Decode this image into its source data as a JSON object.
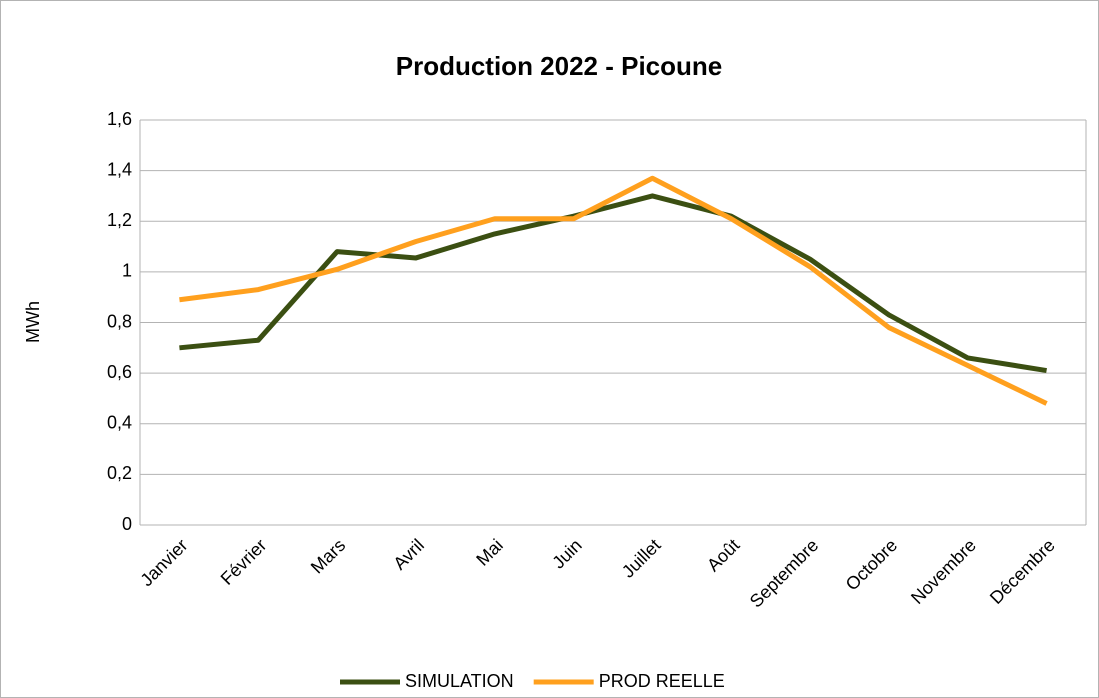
{
  "chart_data": {
    "type": "line",
    "title": "Production 2022 - Picoune",
    "y_label": "MWh",
    "categories": [
      "Janvier",
      "Février",
      "Mars",
      "Avril",
      "Mai",
      "Juin",
      "Juillet",
      "Août",
      "Septembre",
      "Octobre",
      "Novembre",
      "Décembre"
    ],
    "series": [
      {
        "name": "SIMULATION",
        "color": "#3b4f12",
        "values": [
          0.7,
          0.73,
          1.08,
          1.055,
          1.15,
          1.22,
          1.3,
          1.22,
          1.05,
          0.83,
          0.66,
          0.61
        ]
      },
      {
        "name": "PROD REELLE",
        "color": "#ffa01e",
        "values": [
          0.89,
          0.93,
          1.01,
          1.12,
          1.21,
          1.21,
          1.37,
          1.21,
          1.02,
          0.78,
          0.63,
          0.48
        ]
      }
    ],
    "ylim": [
      0,
      1.6
    ],
    "yticks": [
      0,
      {
        "value": 0.2,
        "label": "0,2"
      },
      {
        "value": 0.4,
        "label": "0,4"
      },
      {
        "value": 0.6,
        "label": "0,6"
      },
      {
        "value": 0.8,
        "label": "0,8"
      },
      1,
      {
        "value": 1.2,
        "label": "1,2"
      },
      {
        "value": 1.4,
        "label": "1,4"
      },
      {
        "value": 1.6,
        "label": "1,6"
      }
    ],
    "grid": true,
    "legend": "bottom"
  }
}
